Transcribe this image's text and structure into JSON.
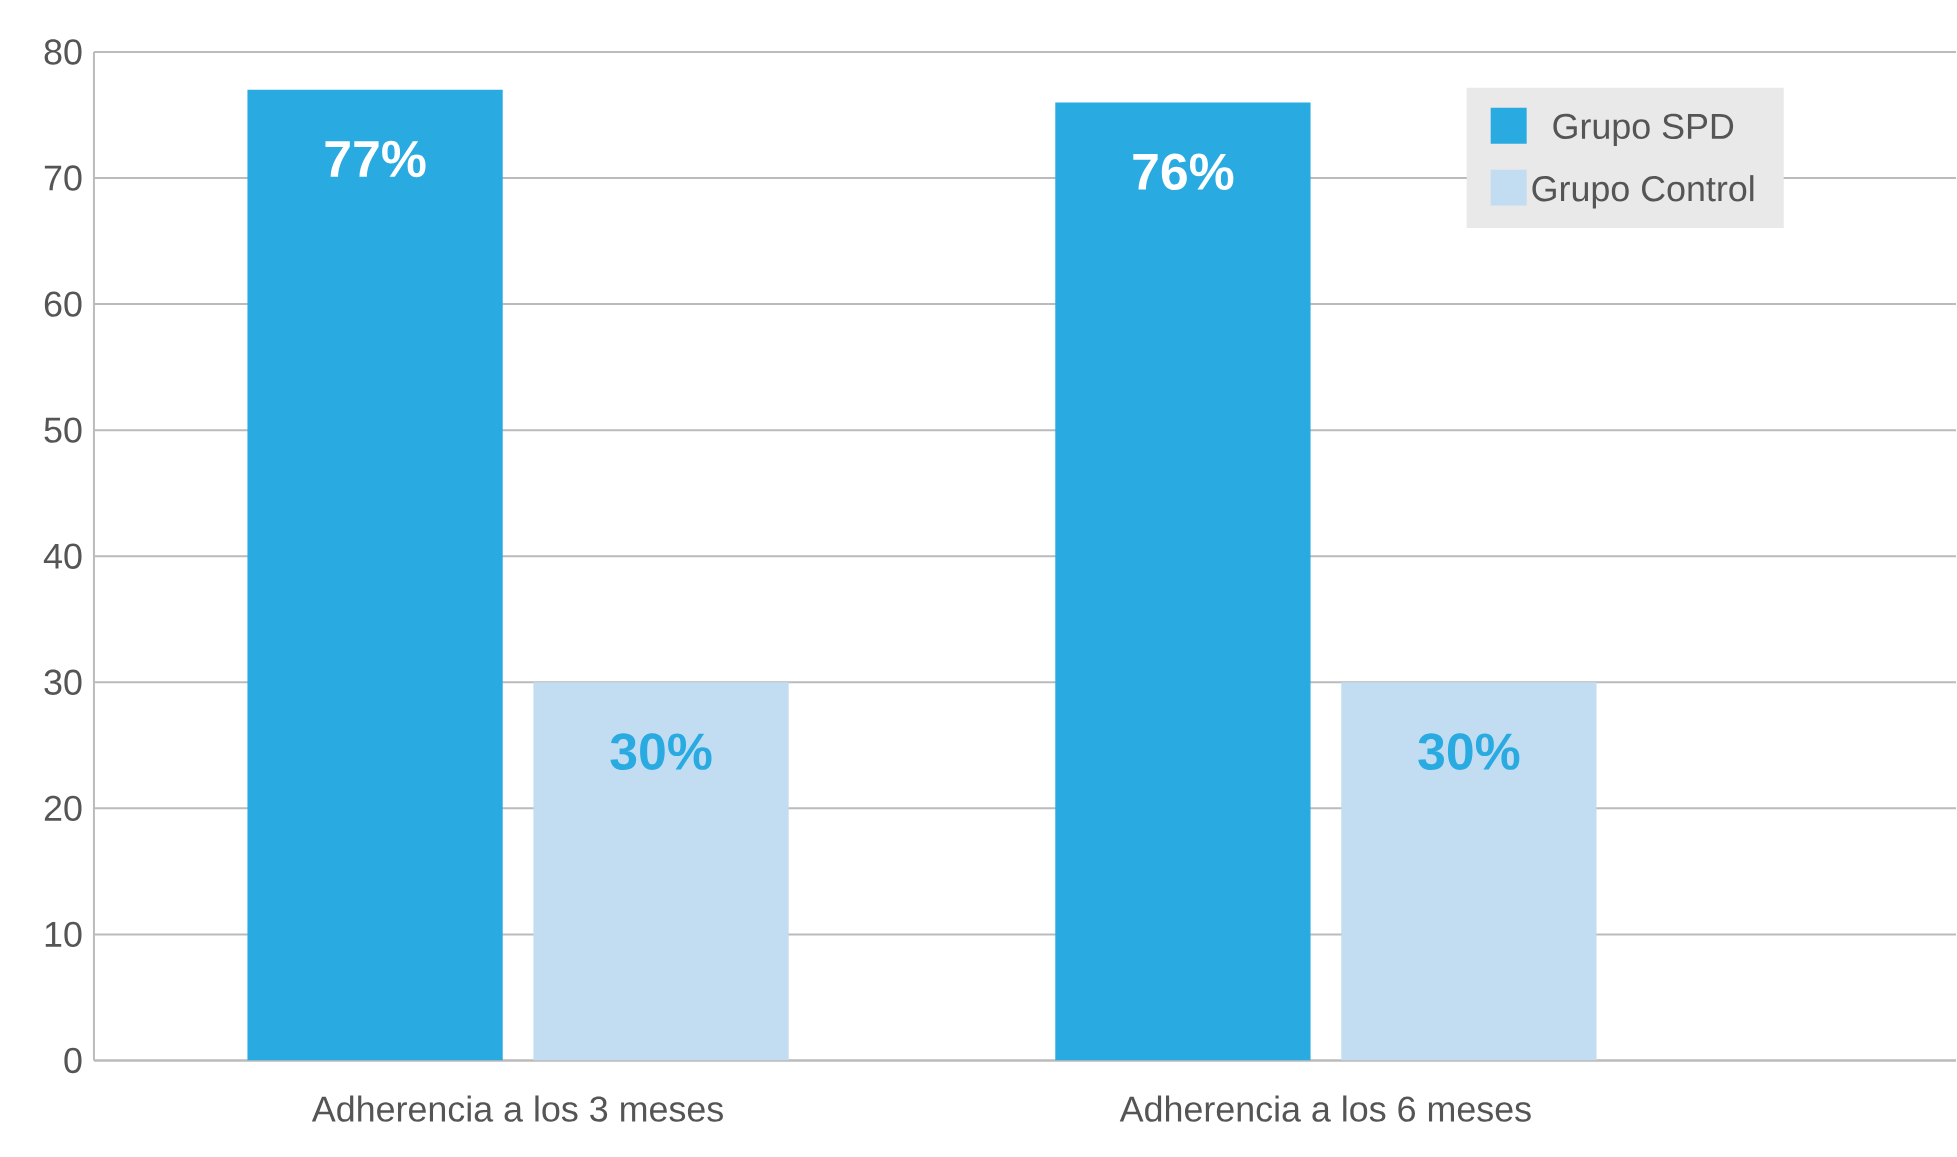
{
  "chart_data": {
    "type": "bar",
    "categories": [
      "Adherencia a los 3 meses",
      "Adherencia a los 6 meses"
    ],
    "series": [
      {
        "name": "Grupo SPD",
        "color": "#29abe2",
        "values": [
          77,
          76
        ],
        "value_labels": [
          "77%",
          "76%"
        ]
      },
      {
        "name": "Grupo Control",
        "color": "#c2dcf2",
        "values": [
          30,
          30
        ],
        "value_labels": [
          "30%",
          "30%"
        ]
      }
    ],
    "ylim": [
      0,
      80
    ],
    "yticks": [
      0,
      10,
      20,
      30,
      40,
      50,
      60,
      70,
      80
    ],
    "grid": "y",
    "legend": "top right"
  }
}
